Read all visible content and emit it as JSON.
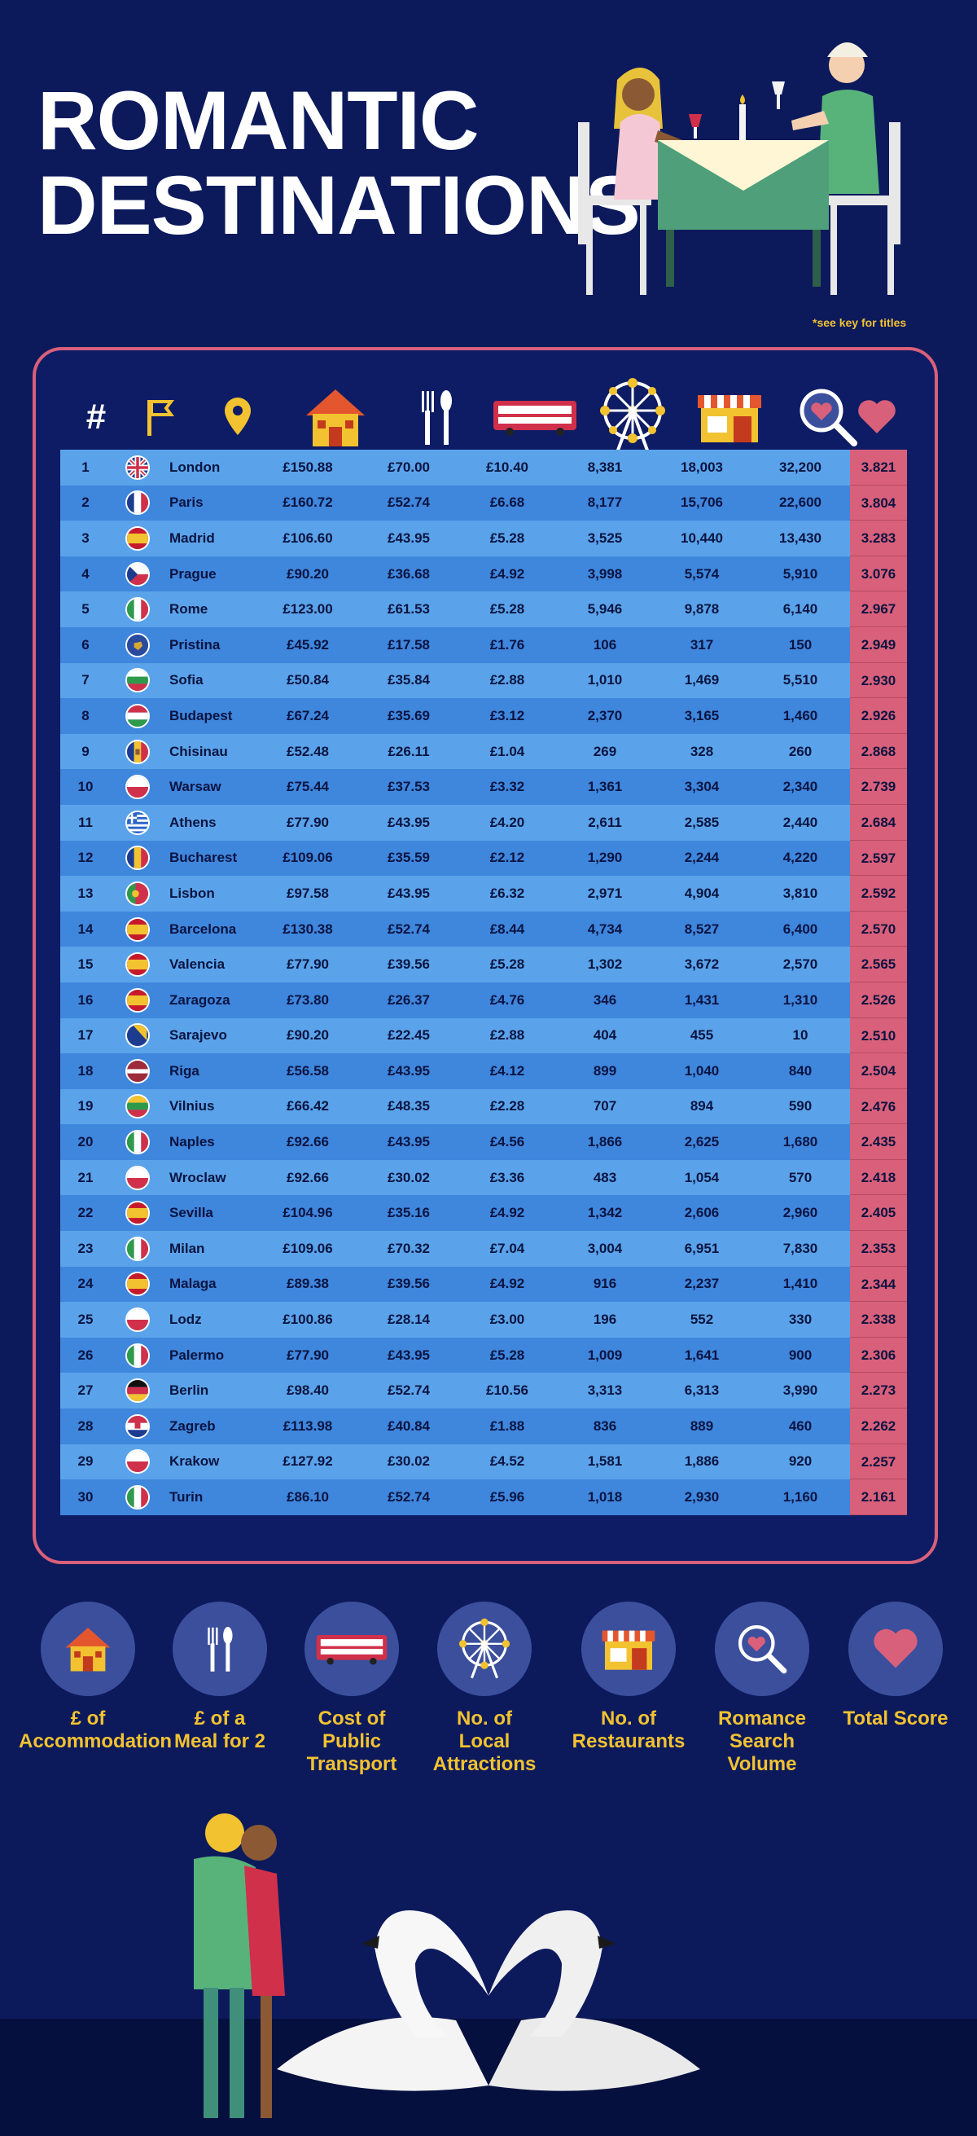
{
  "title_line1": "ROMANTIC",
  "title_line2": "DESTINATIONS",
  "key_note": "*see key for titles",
  "header": {
    "rank_symbol": "#"
  },
  "rows": [
    {
      "rank": "1",
      "flag": "uk",
      "city": "London",
      "acc": "£150.88",
      "meal": "£70.00",
      "trans": "£10.40",
      "attr": "8,381",
      "rest": "18,003",
      "rom": "32,200",
      "score": "3.821"
    },
    {
      "rank": "2",
      "flag": "fr",
      "city": "Paris",
      "acc": "£160.72",
      "meal": "£52.74",
      "trans": "£6.68",
      "attr": "8,177",
      "rest": "15,706",
      "rom": "22,600",
      "score": "3.804"
    },
    {
      "rank": "3",
      "flag": "es",
      "city": "Madrid",
      "acc": "£106.60",
      "meal": "£43.95",
      "trans": "£5.28",
      "attr": "3,525",
      "rest": "10,440",
      "rom": "13,430",
      "score": "3.283"
    },
    {
      "rank": "4",
      "flag": "cz",
      "city": "Prague",
      "acc": "£90.20",
      "meal": "£36.68",
      "trans": "£4.92",
      "attr": "3,998",
      "rest": "5,574",
      "rom": "5,910",
      "score": "3.076"
    },
    {
      "rank": "5",
      "flag": "it",
      "city": "Rome",
      "acc": "£123.00",
      "meal": "£61.53",
      "trans": "£5.28",
      "attr": "5,946",
      "rest": "9,878",
      "rom": "6,140",
      "score": "2.967"
    },
    {
      "rank": "6",
      "flag": "xk",
      "city": "Pristina",
      "acc": "£45.92",
      "meal": "£17.58",
      "trans": "£1.76",
      "attr": "106",
      "rest": "317",
      "rom": "150",
      "score": "2.949"
    },
    {
      "rank": "7",
      "flag": "bg",
      "city": "Sofia",
      "acc": "£50.84",
      "meal": "£35.84",
      "trans": "£2.88",
      "attr": "1,010",
      "rest": "1,469",
      "rom": "5,510",
      "score": "2.930"
    },
    {
      "rank": "8",
      "flag": "hu",
      "city": "Budapest",
      "acc": "£67.24",
      "meal": "£35.69",
      "trans": "£3.12",
      "attr": "2,370",
      "rest": "3,165",
      "rom": "1,460",
      "score": "2.926"
    },
    {
      "rank": "9",
      "flag": "md",
      "city": "Chisinau",
      "acc": "£52.48",
      "meal": "£26.11",
      "trans": "£1.04",
      "attr": "269",
      "rest": "328",
      "rom": "260",
      "score": "2.868"
    },
    {
      "rank": "10",
      "flag": "pl",
      "city": "Warsaw",
      "acc": "£75.44",
      "meal": "£37.53",
      "trans": "£3.32",
      "attr": "1,361",
      "rest": "3,304",
      "rom": "2,340",
      "score": "2.739"
    },
    {
      "rank": "11",
      "flag": "gr",
      "city": "Athens",
      "acc": "£77.90",
      "meal": "£43.95",
      "trans": "£4.20",
      "attr": "2,611",
      "rest": "2,585",
      "rom": "2,440",
      "score": "2.684"
    },
    {
      "rank": "12",
      "flag": "ro",
      "city": "Bucharest",
      "acc": "£109.06",
      "meal": "£35.59",
      "trans": "£2.12",
      "attr": "1,290",
      "rest": "2,244",
      "rom": "4,220",
      "score": "2.597"
    },
    {
      "rank": "13",
      "flag": "pt",
      "city": "Lisbon",
      "acc": "£97.58",
      "meal": "£43.95",
      "trans": "£6.32",
      "attr": "2,971",
      "rest": "4,904",
      "rom": "3,810",
      "score": "2.592"
    },
    {
      "rank": "14",
      "flag": "es",
      "city": "Barcelona",
      "acc": "£130.38",
      "meal": "£52.74",
      "trans": "£8.44",
      "attr": "4,734",
      "rest": "8,527",
      "rom": "6,400",
      "score": "2.570"
    },
    {
      "rank": "15",
      "flag": "es",
      "city": "Valencia",
      "acc": "£77.90",
      "meal": "£39.56",
      "trans": "£5.28",
      "attr": "1,302",
      "rest": "3,672",
      "rom": "2,570",
      "score": "2.565"
    },
    {
      "rank": "16",
      "flag": "es",
      "city": "Zaragoza",
      "acc": "£73.80",
      "meal": "£26.37",
      "trans": "£4.76",
      "attr": "346",
      "rest": "1,431",
      "rom": "1,310",
      "score": "2.526"
    },
    {
      "rank": "17",
      "flag": "ba",
      "city": "Sarajevo",
      "acc": "£90.20",
      "meal": "£22.45",
      "trans": "£2.88",
      "attr": "404",
      "rest": "455",
      "rom": "10",
      "score": "2.510"
    },
    {
      "rank": "18",
      "flag": "lv",
      "city": "Riga",
      "acc": "£56.58",
      "meal": "£43.95",
      "trans": "£4.12",
      "attr": "899",
      "rest": "1,040",
      "rom": "840",
      "score": "2.504"
    },
    {
      "rank": "19",
      "flag": "lt",
      "city": "Vilnius",
      "acc": "£66.42",
      "meal": "£48.35",
      "trans": "£2.28",
      "attr": "707",
      "rest": "894",
      "rom": "590",
      "score": "2.476"
    },
    {
      "rank": "20",
      "flag": "it",
      "city": "Naples",
      "acc": "£92.66",
      "meal": "£43.95",
      "trans": "£4.56",
      "attr": "1,866",
      "rest": "2,625",
      "rom": "1,680",
      "score": "2.435"
    },
    {
      "rank": "21",
      "flag": "pl",
      "city": "Wroclaw",
      "acc": "£92.66",
      "meal": "£30.02",
      "trans": "£3.36",
      "attr": "483",
      "rest": "1,054",
      "rom": "570",
      "score": "2.418"
    },
    {
      "rank": "22",
      "flag": "es",
      "city": "Sevilla",
      "acc": "£104.96",
      "meal": "£35.16",
      "trans": "£4.92",
      "attr": "1,342",
      "rest": "2,606",
      "rom": "2,960",
      "score": "2.405"
    },
    {
      "rank": "23",
      "flag": "it",
      "city": "Milan",
      "acc": "£109.06",
      "meal": "£70.32",
      "trans": "£7.04",
      "attr": "3,004",
      "rest": "6,951",
      "rom": "7,830",
      "score": "2.353"
    },
    {
      "rank": "24",
      "flag": "es",
      "city": "Malaga",
      "acc": "£89.38",
      "meal": "£39.56",
      "trans": "£4.92",
      "attr": "916",
      "rest": "2,237",
      "rom": "1,410",
      "score": "2.344"
    },
    {
      "rank": "25",
      "flag": "pl",
      "city": "Lodz",
      "acc": "£100.86",
      "meal": "£28.14",
      "trans": "£3.00",
      "attr": "196",
      "rest": "552",
      "rom": "330",
      "score": "2.338"
    },
    {
      "rank": "26",
      "flag": "it",
      "city": "Palermo",
      "acc": "£77.90",
      "meal": "£43.95",
      "trans": "£5.28",
      "attr": "1,009",
      "rest": "1,641",
      "rom": "900",
      "score": "2.306"
    },
    {
      "rank": "27",
      "flag": "de",
      "city": "Berlin",
      "acc": "£98.40",
      "meal": "£52.74",
      "trans": "£10.56",
      "attr": "3,313",
      "rest": "6,313",
      "rom": "3,990",
      "score": "2.273"
    },
    {
      "rank": "28",
      "flag": "hr",
      "city": "Zagreb",
      "acc": "£113.98",
      "meal": "£40.84",
      "trans": "£1.88",
      "attr": "836",
      "rest": "889",
      "rom": "460",
      "score": "2.262"
    },
    {
      "rank": "29",
      "flag": "pl",
      "city": "Krakow",
      "acc": "£127.92",
      "meal": "£30.02",
      "trans": "£4.52",
      "attr": "1,581",
      "rest": "1,886",
      "rom": "920",
      "score": "2.257"
    },
    {
      "rank": "30",
      "flag": "it",
      "city": "Turin",
      "acc": "£86.10",
      "meal": "£52.74",
      "trans": "£5.96",
      "attr": "1,018",
      "rest": "2,930",
      "rom": "1,160",
      "score": "2.161"
    }
  ],
  "legend": [
    {
      "icon": "house-icon",
      "line1": "£ of",
      "line2": "Accommodation",
      "line3": ""
    },
    {
      "icon": "cutlery-icon",
      "line1": "£ of a",
      "line2": "Meal for 2",
      "line3": ""
    },
    {
      "icon": "bus-icon",
      "line1": "Cost of",
      "line2": "Public",
      "line3": "Transport"
    },
    {
      "icon": "ferris-wheel-icon",
      "line1": "No. of",
      "line2": "Local",
      "line3": "Attractions"
    },
    {
      "icon": "restaurant-icon",
      "line1": "No. of",
      "line2": "Restaurants",
      "line3": ""
    },
    {
      "icon": "heart-search-icon",
      "line1": "Romance",
      "line2": "Search",
      "line3": "Volume"
    },
    {
      "icon": "heart-icon",
      "line1": "Total Score",
      "line2": "",
      "line3": ""
    }
  ],
  "colors": {
    "background": "#0c1a5c",
    "row_light": "#5aa3ea",
    "row_dark": "#3f86dd",
    "score": "#d9607a",
    "accent": "#f2c230"
  }
}
